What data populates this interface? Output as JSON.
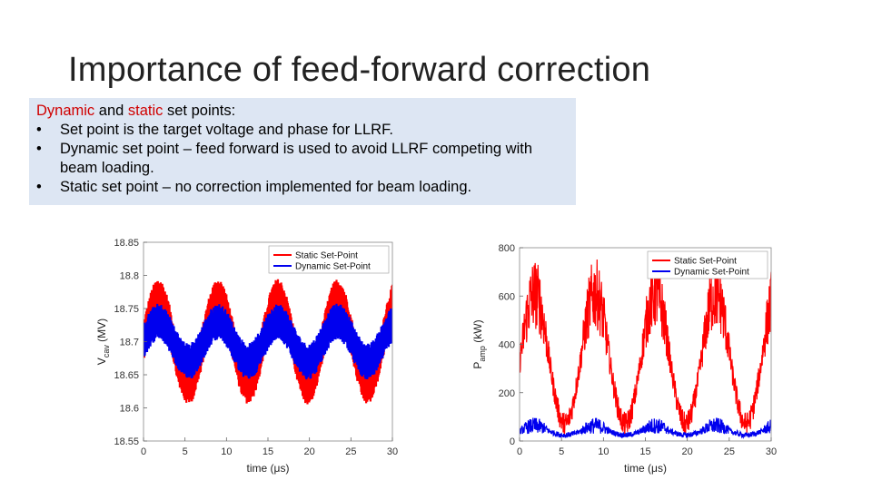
{
  "slide": {
    "title": "Importance of feed-forward correction",
    "box": {
      "heading_dynamic": "Dynamic",
      "heading_and": " and ",
      "heading_static": "static",
      "heading_rest": " set points:",
      "bullets": [
        "Set point is the target voltage and phase for LLRF.",
        "Dynamic set point – feed forward is used to avoid LLRF competing with beam loading.",
        "Static set point – no correction implemented for beam loading."
      ],
      "bullet_char": "•"
    }
  },
  "colors": {
    "static": "#ff0000",
    "dynamic": "#0000ee",
    "box_bg": "#dde6f3",
    "accent_text": "#d00000"
  },
  "chart_data": [
    {
      "type": "line",
      "xlabel": "time (μs)",
      "ylabel_main": "V",
      "ylabel_sub": "cav",
      "ylabel_unit": " (MV)",
      "xlim": [
        0,
        30
      ],
      "ylim": [
        18.55,
        18.85
      ],
      "xticks": [
        0,
        5,
        10,
        15,
        20,
        25,
        30
      ],
      "yticks": [
        18.55,
        18.6,
        18.65,
        18.7,
        18.75,
        18.8,
        18.85
      ],
      "ytick_labels": [
        "18.55",
        "18.6",
        "18.65",
        "18.7",
        "18.75",
        "18.8",
        "18.85"
      ],
      "legend_position": "top-right",
      "series": [
        {
          "name": "Static Set-Point",
          "color": "#ff0000",
          "period_us": 7.2,
          "mean": 18.7,
          "amplitude": 0.065,
          "ripple": 0.06
        },
        {
          "name": "Dynamic Set-Point",
          "color": "#0000ee",
          "period_us": 7.2,
          "mean": 18.7,
          "amplitude": 0.03,
          "ripple": 0.055
        }
      ]
    },
    {
      "type": "line",
      "xlabel": "time (μs)",
      "ylabel_main": "P",
      "ylabel_sub": "amp",
      "ylabel_unit": " (kW)",
      "xlim": [
        0,
        30
      ],
      "ylim": [
        0,
        800
      ],
      "xticks": [
        0,
        5,
        10,
        15,
        20,
        25,
        30
      ],
      "yticks": [
        0,
        200,
        400,
        600,
        800
      ],
      "ytick_labels": [
        "0",
        "200",
        "400",
        "600",
        "800"
      ],
      "legend_position": "top-right",
      "series": [
        {
          "name": "Static Set-Point",
          "color": "#ff0000",
          "period_us": 7.2,
          "mean": 300,
          "amplitude": 250,
          "noise": 200
        },
        {
          "name": "Dynamic Set-Point",
          "color": "#0000ee",
          "period_us": 7.2,
          "mean": 35,
          "amplitude": 15,
          "noise": 45
        }
      ]
    }
  ]
}
